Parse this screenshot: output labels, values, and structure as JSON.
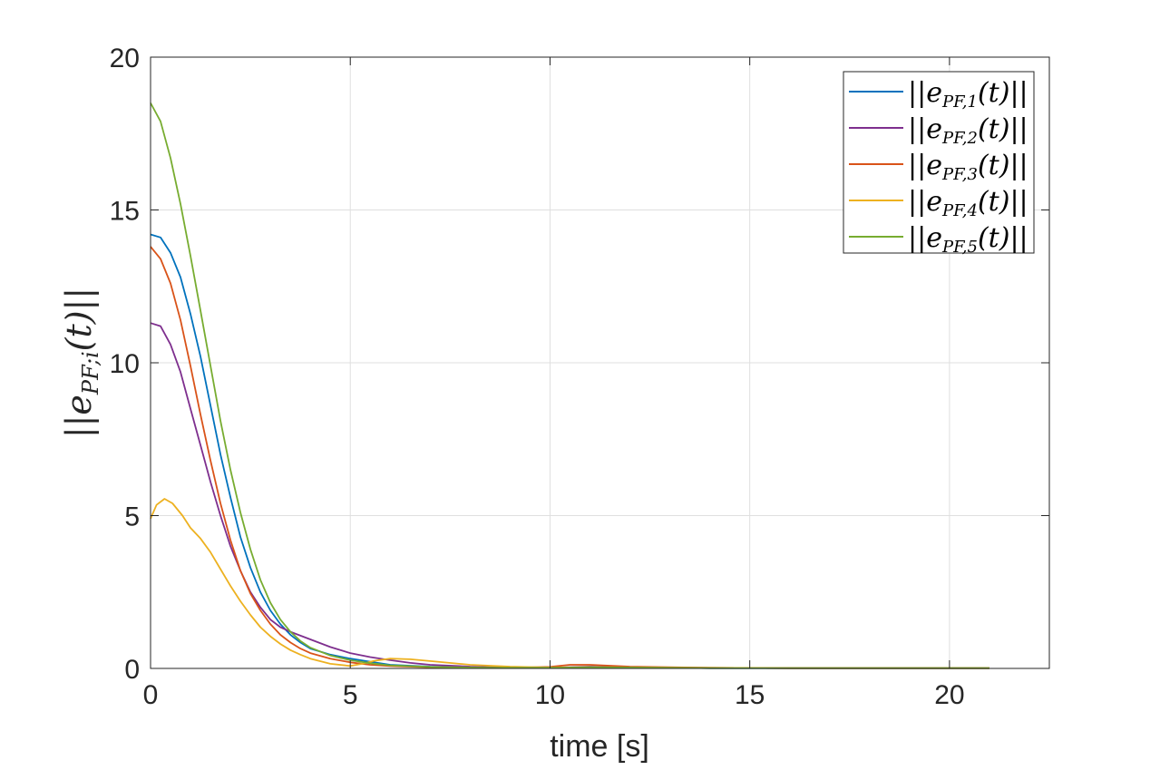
{
  "chart_data": {
    "type": "line",
    "title": "",
    "xlabel": "time [s]",
    "ylabel": "||e_PF;i(t)||",
    "ylabel_parts": {
      "bars_left": "||",
      "base": "e",
      "sub": "PF;i",
      "paren": "(t)",
      "bars_right": "||"
    },
    "xlim": [
      0,
      22.5
    ],
    "ylim": [
      0,
      20
    ],
    "xticks": [
      0,
      5,
      10,
      15,
      20
    ],
    "yticks": [
      0,
      5,
      10,
      15,
      20
    ],
    "xtick_labels": [
      "0",
      "5",
      "10",
      "15",
      "20"
    ],
    "ytick_labels": [
      "0",
      "5",
      "10",
      "15",
      "20"
    ],
    "grid": true,
    "legend_position": "top-right",
    "series": [
      {
        "name": "||e_PF,1(t)||",
        "label_sub": "PF,1",
        "color": "#0072BD",
        "points": [
          [
            0,
            14.2
          ],
          [
            0.25,
            14.1
          ],
          [
            0.5,
            13.6
          ],
          [
            0.75,
            12.8
          ],
          [
            1.0,
            11.6
          ],
          [
            1.25,
            10.2
          ],
          [
            1.5,
            8.6
          ],
          [
            1.75,
            7.0
          ],
          [
            2.0,
            5.6
          ],
          [
            2.25,
            4.3
          ],
          [
            2.5,
            3.3
          ],
          [
            2.75,
            2.5
          ],
          [
            3.0,
            1.9
          ],
          [
            3.25,
            1.45
          ],
          [
            3.5,
            1.1
          ],
          [
            3.75,
            0.85
          ],
          [
            4.0,
            0.65
          ],
          [
            4.5,
            0.45
          ],
          [
            5.0,
            0.32
          ],
          [
            5.5,
            0.22
          ],
          [
            6.0,
            0.12
          ],
          [
            7.0,
            0.06
          ],
          [
            8.0,
            0.03
          ],
          [
            9.0,
            0.02
          ],
          [
            10.0,
            0.02
          ],
          [
            11.0,
            0.05
          ],
          [
            12.0,
            0.03
          ],
          [
            14.0,
            0.01
          ],
          [
            16.0,
            0.01
          ],
          [
            18.0,
            0.01
          ],
          [
            21.0,
            0.01
          ]
        ]
      },
      {
        "name": "||e_PF,2(t)||",
        "label_sub": "PF,2",
        "color": "#7E2F8E",
        "points": [
          [
            0,
            11.3
          ],
          [
            0.25,
            11.2
          ],
          [
            0.5,
            10.6
          ],
          [
            0.75,
            9.7
          ],
          [
            1.0,
            8.5
          ],
          [
            1.25,
            7.3
          ],
          [
            1.5,
            6.1
          ],
          [
            1.75,
            5.0
          ],
          [
            2.0,
            4.0
          ],
          [
            2.25,
            3.2
          ],
          [
            2.5,
            2.5
          ],
          [
            2.75,
            2.0
          ],
          [
            3.0,
            1.6
          ],
          [
            3.25,
            1.35
          ],
          [
            3.5,
            1.2
          ],
          [
            4.0,
            0.95
          ],
          [
            4.5,
            0.7
          ],
          [
            5.0,
            0.5
          ],
          [
            5.5,
            0.37
          ],
          [
            6.0,
            0.27
          ],
          [
            6.5,
            0.18
          ],
          [
            7.0,
            0.12
          ],
          [
            8.0,
            0.06
          ],
          [
            9.0,
            0.03
          ],
          [
            10.0,
            0.02
          ],
          [
            11.0,
            0.06
          ],
          [
            12.0,
            0.04
          ],
          [
            14.0,
            0.02
          ],
          [
            16.0,
            0.01
          ],
          [
            18.0,
            0.01
          ],
          [
            21.0,
            0.01
          ]
        ]
      },
      {
        "name": "||e_PF,3(t)||",
        "label_sub": "PF,3",
        "color": "#D95319",
        "points": [
          [
            0,
            13.8
          ],
          [
            0.25,
            13.4
          ],
          [
            0.5,
            12.6
          ],
          [
            0.75,
            11.4
          ],
          [
            1.0,
            9.9
          ],
          [
            1.25,
            8.3
          ],
          [
            1.5,
            6.8
          ],
          [
            1.75,
            5.4
          ],
          [
            2.0,
            4.2
          ],
          [
            2.25,
            3.2
          ],
          [
            2.5,
            2.45
          ],
          [
            2.75,
            1.9
          ],
          [
            3.0,
            1.45
          ],
          [
            3.25,
            1.1
          ],
          [
            3.5,
            0.85
          ],
          [
            3.75,
            0.65
          ],
          [
            4.0,
            0.5
          ],
          [
            4.5,
            0.32
          ],
          [
            5.0,
            0.2
          ],
          [
            5.5,
            0.12
          ],
          [
            6.0,
            0.08
          ],
          [
            7.0,
            0.04
          ],
          [
            8.0,
            0.02
          ],
          [
            9.0,
            0.02
          ],
          [
            10.0,
            0.05
          ],
          [
            10.5,
            0.12
          ],
          [
            11.0,
            0.12
          ],
          [
            12.0,
            0.06
          ],
          [
            14.0,
            0.02
          ],
          [
            16.0,
            0.01
          ],
          [
            18.0,
            0.01
          ],
          [
            21.0,
            0.01
          ]
        ]
      },
      {
        "name": "||e_PF,4(t)||",
        "label_sub": "PF,4",
        "color": "#EDB120",
        "points": [
          [
            0,
            4.9
          ],
          [
            0.15,
            5.35
          ],
          [
            0.35,
            5.55
          ],
          [
            0.55,
            5.4
          ],
          [
            0.8,
            5.0
          ],
          [
            1.0,
            4.6
          ],
          [
            1.25,
            4.25
          ],
          [
            1.5,
            3.8
          ],
          [
            1.75,
            3.25
          ],
          [
            2.0,
            2.7
          ],
          [
            2.25,
            2.2
          ],
          [
            2.5,
            1.75
          ],
          [
            2.75,
            1.35
          ],
          [
            3.0,
            1.05
          ],
          [
            3.25,
            0.8
          ],
          [
            3.5,
            0.6
          ],
          [
            3.75,
            0.45
          ],
          [
            4.0,
            0.32
          ],
          [
            4.5,
            0.15
          ],
          [
            5.0,
            0.08
          ],
          [
            5.3,
            0.15
          ],
          [
            5.6,
            0.25
          ],
          [
            6.0,
            0.32
          ],
          [
            6.5,
            0.3
          ],
          [
            7.0,
            0.24
          ],
          [
            8.0,
            0.12
          ],
          [
            9.0,
            0.06
          ],
          [
            10.0,
            0.03
          ],
          [
            11.0,
            0.04
          ],
          [
            12.0,
            0.03
          ],
          [
            14.0,
            0.02
          ],
          [
            16.0,
            0.01
          ],
          [
            18.0,
            0.01
          ],
          [
            21.0,
            0.01
          ]
        ]
      },
      {
        "name": "||e_PF,5(t)||",
        "label_sub": "PF,5",
        "color": "#77AC30",
        "points": [
          [
            0,
            18.5
          ],
          [
            0.25,
            17.9
          ],
          [
            0.5,
            16.7
          ],
          [
            0.75,
            15.2
          ],
          [
            1.0,
            13.5
          ],
          [
            1.25,
            11.7
          ],
          [
            1.5,
            9.9
          ],
          [
            1.75,
            8.1
          ],
          [
            2.0,
            6.5
          ],
          [
            2.25,
            5.1
          ],
          [
            2.5,
            3.9
          ],
          [
            2.75,
            2.9
          ],
          [
            3.0,
            2.15
          ],
          [
            3.25,
            1.6
          ],
          [
            3.5,
            1.2
          ],
          [
            3.75,
            0.9
          ],
          [
            4.0,
            0.68
          ],
          [
            4.5,
            0.42
          ],
          [
            5.0,
            0.27
          ],
          [
            5.5,
            0.17
          ],
          [
            6.0,
            0.1
          ],
          [
            7.0,
            0.05
          ],
          [
            8.0,
            0.03
          ],
          [
            9.0,
            0.02
          ],
          [
            10.0,
            0.02
          ],
          [
            11.0,
            0.04
          ],
          [
            12.0,
            0.03
          ],
          [
            14.0,
            0.01
          ],
          [
            16.0,
            0.01
          ],
          [
            18.0,
            0.01
          ],
          [
            21.0,
            0.01
          ]
        ]
      }
    ]
  }
}
